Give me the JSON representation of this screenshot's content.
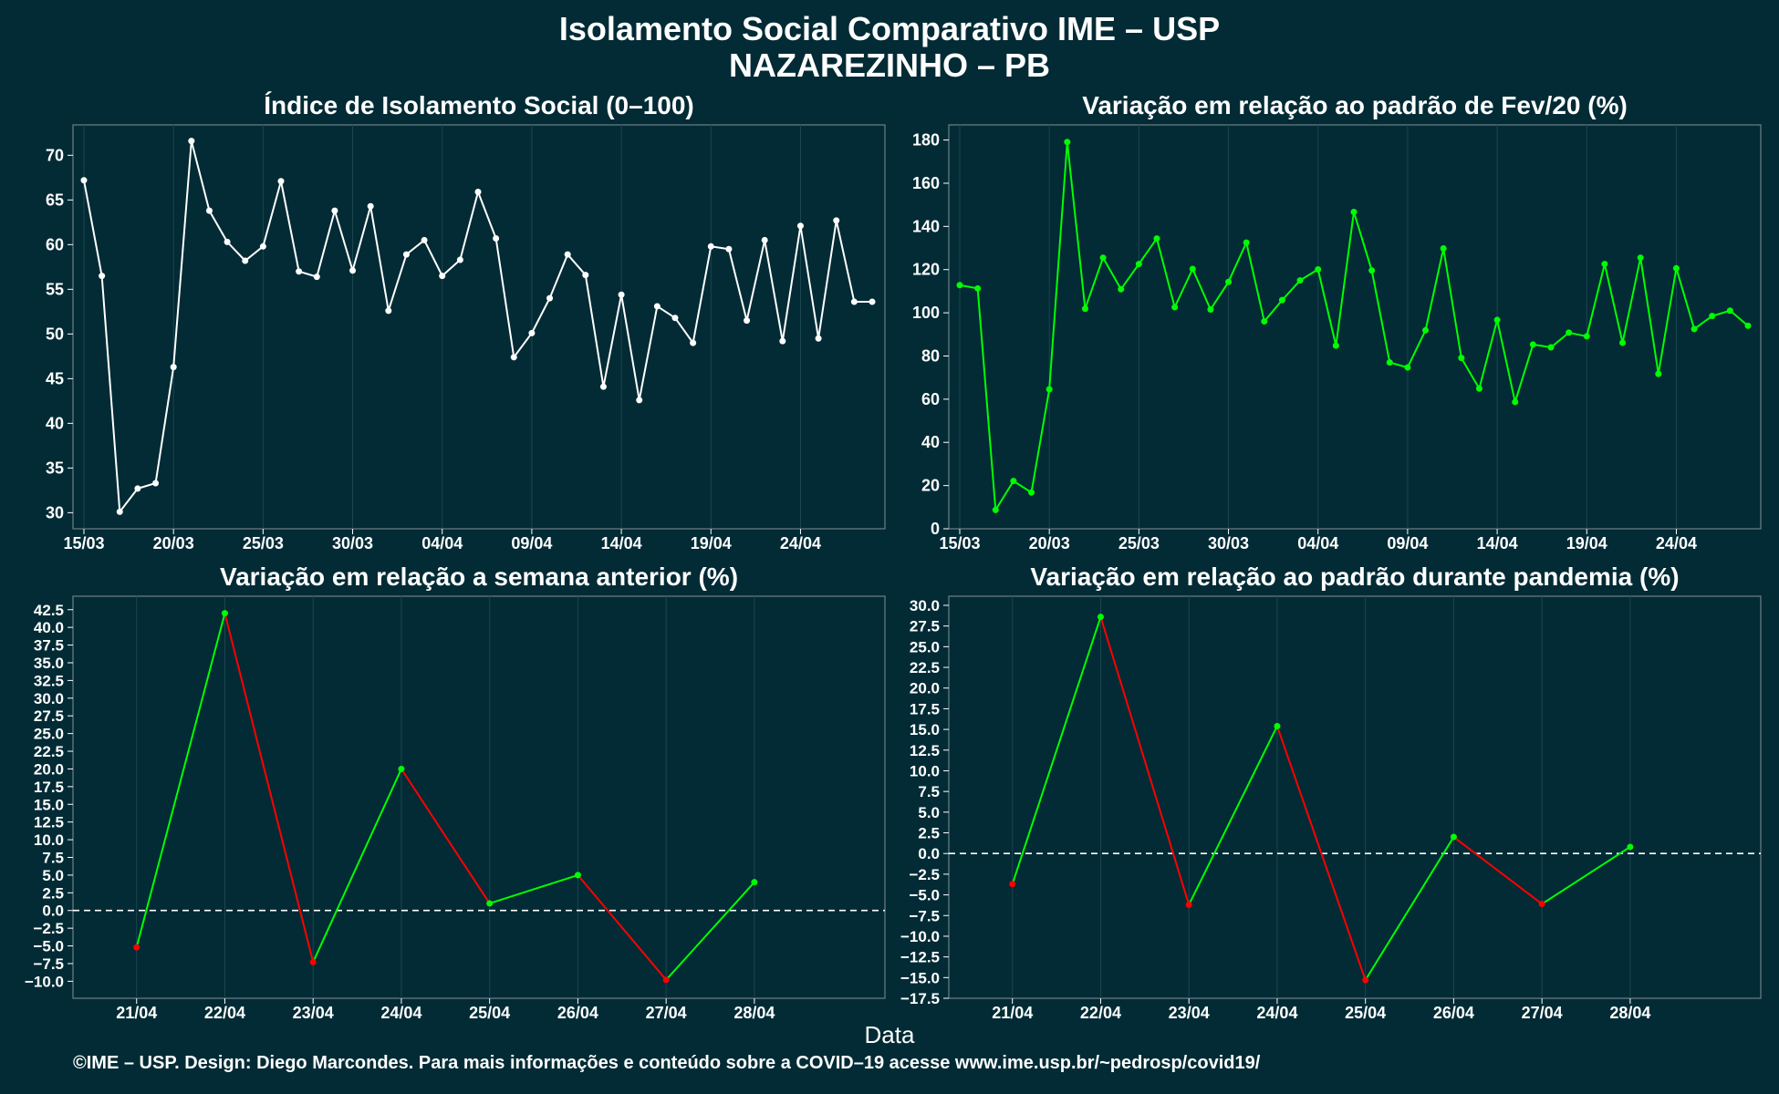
{
  "header": {
    "title": "Isolamento Social Comparativo IME – USP",
    "subtitle": "NAZAREZINHO – PB"
  },
  "footer": {
    "xlabel": "Data",
    "credit": "©IME – USP. Design: Diego Marcondes. Para mais informações e conteúdo sobre a COVID–19 acesse www.ime.usp.br/~pedrosp/covid19/"
  },
  "colors": {
    "background": "#022b35",
    "white": "#ffffff",
    "green": "#00ff00",
    "red": "#ff0000"
  },
  "chart_data": [
    {
      "id": "isolamento",
      "type": "line",
      "title": "Índice de Isolamento Social (0–100)",
      "color": "#ffffff",
      "x_start": "2020-03-15",
      "x_tick_labels": [
        "15/03",
        "20/03",
        "25/03",
        "30/03",
        "04/04",
        "09/04",
        "14/04",
        "19/04",
        "24/04"
      ],
      "y_ticks": [
        30,
        35,
        40,
        45,
        50,
        55,
        60,
        65,
        70
      ],
      "ylim": [
        28.2,
        73.4
      ],
      "values": [
        67.2,
        56.5,
        30.1,
        32.7,
        33.3,
        46.3,
        71.6,
        63.8,
        60.3,
        58.2,
        59.8,
        67.1,
        57.0,
        56.4,
        63.8,
        57.1,
        64.3,
        52.6,
        58.9,
        60.5,
        56.5,
        58.3,
        65.9,
        60.7,
        47.4,
        50.1,
        54.0,
        58.9,
        56.6,
        44.1,
        54.4,
        42.6,
        53.1,
        51.8,
        49.0,
        59.8,
        59.5,
        51.5,
        60.5,
        49.2,
        62.1,
        49.5,
        62.7,
        53.6,
        53.6
      ]
    },
    {
      "id": "padrao_fev",
      "type": "line",
      "title": "Variação em relação ao padrão de Fev/20 (%)",
      "color": "#00ff00",
      "x_start": "2020-03-15",
      "x_tick_labels": [
        "15/03",
        "20/03",
        "25/03",
        "30/03",
        "04/04",
        "09/04",
        "14/04",
        "19/04",
        "24/04"
      ],
      "y_ticks": [
        0,
        20,
        40,
        60,
        80,
        100,
        120,
        140,
        160,
        180
      ],
      "ylim": [
        0,
        187
      ],
      "values": [
        112.8,
        111.3,
        8.7,
        22.1,
        16.8,
        64.6,
        179.1,
        101.9,
        125.5,
        110.9,
        122.6,
        134.4,
        102.6,
        120.3,
        101.5,
        114.3,
        132.5,
        96.0,
        105.9,
        115.0,
        120.1,
        84.8,
        146.7,
        119.6,
        77.0,
        74.7,
        91.9,
        129.8,
        79.1,
        64.9,
        96.7,
        58.7,
        85.3,
        84.0,
        90.8,
        89.1,
        122.6,
        86.1,
        125.5,
        71.7,
        120.6,
        92.5,
        98.5,
        101.0,
        94.0
      ]
    },
    {
      "id": "semana_anterior",
      "type": "line",
      "title": "Variação em relação a semana anterior (%)",
      "colors": {
        "up": "#00ff00",
        "down": "#ff0000"
      },
      "categories": [
        "21/04",
        "22/04",
        "23/04",
        "24/04",
        "25/04",
        "26/04",
        "27/04",
        "28/04"
      ],
      "values": [
        -5.2,
        42.0,
        -7.3,
        20.0,
        1.0,
        5.0,
        -9.8,
        4.0
      ],
      "y_ticks": [
        -10.0,
        -7.5,
        -5.0,
        -2.5,
        0.0,
        2.5,
        5.0,
        7.5,
        10.0,
        12.5,
        15.0,
        17.5,
        20.0,
        22.5,
        25.0,
        27.5,
        30.0,
        32.5,
        35.0,
        37.5,
        40.0,
        42.5
      ],
      "ylim": [
        -12.4,
        44.4
      ],
      "reference_line": 0
    },
    {
      "id": "padrao_pandemia",
      "type": "line",
      "title": "Variação em relação ao padrão durante pandemia (%)",
      "colors": {
        "up": "#00ff00",
        "down": "#ff0000"
      },
      "categories": [
        "21/04",
        "22/04",
        "23/04",
        "24/04",
        "25/04",
        "26/04",
        "27/04",
        "28/04"
      ],
      "values": [
        -3.7,
        28.6,
        -6.2,
        15.4,
        -15.3,
        2.0,
        -6.1,
        0.8
      ],
      "y_ticks": [
        -17.5,
        -15.0,
        -12.5,
        -10.0,
        -7.5,
        -5.0,
        -2.5,
        0.0,
        2.5,
        5.0,
        7.5,
        10.0,
        12.5,
        15.0,
        17.5,
        20.0,
        22.5,
        25.0,
        27.5,
        30.0
      ],
      "ylim": [
        -17.5,
        31.1
      ],
      "reference_line": 0
    }
  ]
}
